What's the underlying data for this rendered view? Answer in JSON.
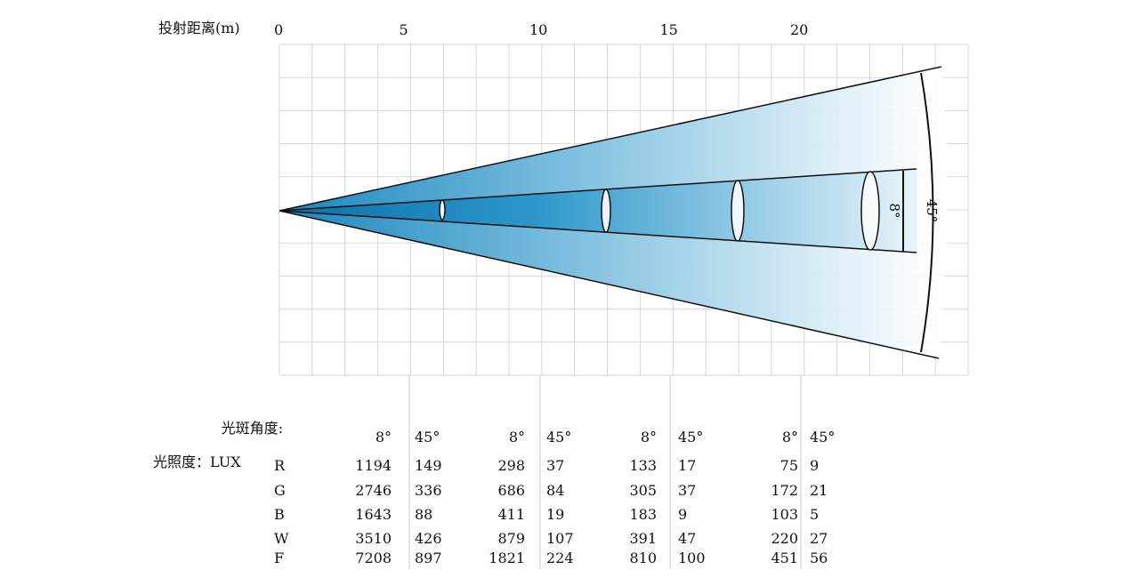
{
  "axis": {
    "label": "投射距离(m)",
    "ticks": [
      "0",
      "5",
      "10",
      "15",
      "20"
    ]
  },
  "angles": {
    "narrow": "8°",
    "wide": "45°"
  },
  "table": {
    "angle_label": "光斑角度:",
    "lux_label": "光照度：LUX",
    "headers": [
      "8°",
      "45°",
      "8°",
      "45°",
      "8°",
      "45°",
      "8°",
      "45°"
    ],
    "rows": [
      {
        "name": "R",
        "values": [
          "1194",
          "149",
          "298",
          "37",
          "133",
          "17",
          "75",
          "9"
        ]
      },
      {
        "name": "G",
        "values": [
          "2746",
          "336",
          "686",
          "84",
          "305",
          "37",
          "172",
          "21"
        ]
      },
      {
        "name": "B",
        "values": [
          "1643",
          "88",
          "411",
          "19",
          "183",
          "9",
          "103",
          "5"
        ]
      },
      {
        "name": "W",
        "values": [
          "3510",
          "426",
          "879",
          "107",
          "391",
          "47",
          "220",
          "27"
        ]
      },
      {
        "name": "F",
        "values": [
          "7208",
          "897",
          "1821",
          "224",
          "810",
          "100",
          "451",
          "56"
        ]
      }
    ]
  },
  "colors": {
    "beam": "#1a86be",
    "grid": "#d4d8dc"
  }
}
